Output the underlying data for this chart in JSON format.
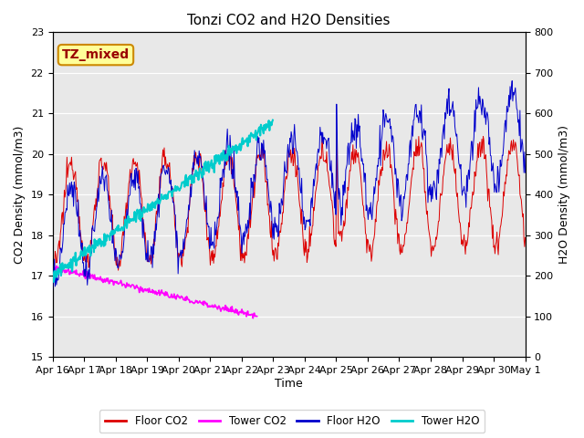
{
  "title": "Tonzi CO2 and H2O Densities",
  "xlabel": "Time",
  "ylabel_left": "CO2 Density (mmol/m3)",
  "ylabel_right": "H2O Density (mmol/m3)",
  "ylim_left": [
    15.0,
    23.0
  ],
  "ylim_right": [
    0,
    800
  ],
  "yticks_left": [
    15.0,
    16.0,
    17.0,
    18.0,
    19.0,
    20.0,
    21.0,
    22.0,
    23.0
  ],
  "yticks_right": [
    0,
    100,
    200,
    300,
    400,
    500,
    600,
    700,
    800
  ],
  "xtick_labels": [
    "Apr 16",
    "Apr 17",
    "Apr 18",
    "Apr 19",
    "Apr 20",
    "Apr 21",
    "Apr 22",
    "Apr 23",
    "Apr 24",
    "Apr 25",
    "Apr 26",
    "Apr 27",
    "Apr 28",
    "Apr 29",
    "Apr 30",
    "May 1"
  ],
  "annotation_text": "TZ_mixed",
  "annotation_facecolor": "#ffff99",
  "annotation_edgecolor": "#cc8800",
  "annotation_textcolor": "#990000",
  "color_floor_co2": "#dd0000",
  "color_tower_co2": "#ff00ff",
  "color_floor_h2o": "#0000cc",
  "color_tower_h2o": "#00cccc",
  "legend_labels": [
    "Floor CO2",
    "Tower CO2",
    "Floor H2O",
    "Tower H2O"
  ],
  "background_color": "#e8e8e8",
  "n_days": 15,
  "n_pts_per_day": 48,
  "co2_h2o_scale": 100
}
